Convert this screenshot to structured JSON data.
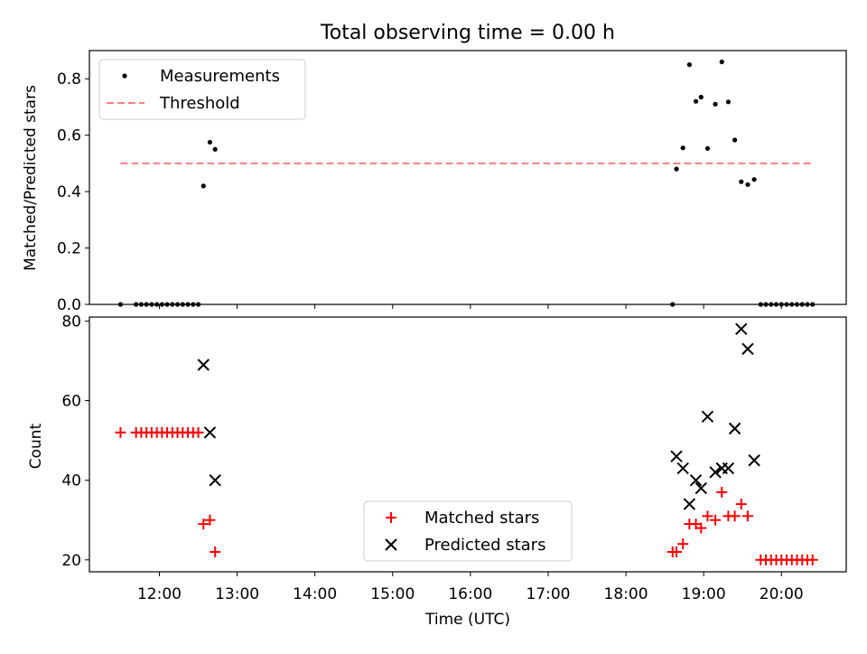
{
  "figure": {
    "title": "Total observing time = 0.00 h"
  },
  "chart_data": [
    {
      "type": "scatter",
      "ylabel": "Matched/Predicted stars",
      "xlabel": "",
      "xlim": [
        "11:06",
        "20:50"
      ],
      "ylim": [
        0,
        0.9
      ],
      "yticks": [
        "0.0",
        "0.2",
        "0.4",
        "0.6",
        "0.8"
      ],
      "legend_position": "top-left",
      "threshold": {
        "value": 0.5,
        "x_start": "11:30",
        "x_end": "20:24",
        "color": "#ff7f7f"
      },
      "series": [
        {
          "name": "Measurements",
          "color": "#000000",
          "points": [
            [
              "11:30",
              0.0
            ],
            [
              "11:42",
              0.0
            ],
            [
              "11:46",
              0.0
            ],
            [
              "11:50",
              0.0
            ],
            [
              "11:54",
              0.0
            ],
            [
              "11:58",
              0.0
            ],
            [
              "12:02",
              0.0
            ],
            [
              "12:06",
              0.0
            ],
            [
              "12:10",
              0.0
            ],
            [
              "12:14",
              0.0
            ],
            [
              "12:18",
              0.0
            ],
            [
              "12:22",
              0.0
            ],
            [
              "12:26",
              0.0
            ],
            [
              "12:30",
              0.0
            ],
            [
              "12:34",
              0.42
            ],
            [
              "12:39",
              0.575
            ],
            [
              "12:43",
              0.55
            ],
            [
              "18:36",
              0.0
            ],
            [
              "18:39",
              0.48
            ],
            [
              "18:44",
              0.555
            ],
            [
              "18:49",
              0.85
            ],
            [
              "18:54",
              0.72
            ],
            [
              "18:58",
              0.735
            ],
            [
              "19:03",
              0.553
            ],
            [
              "19:09",
              0.71
            ],
            [
              "19:14",
              0.86
            ],
            [
              "19:19",
              0.718
            ],
            [
              "19:24",
              0.583
            ],
            [
              "19:29",
              0.435
            ],
            [
              "19:34",
              0.425
            ],
            [
              "19:39",
              0.443
            ],
            [
              "19:44",
              0.0
            ],
            [
              "19:48",
              0.0
            ],
            [
              "19:52",
              0.0
            ],
            [
              "19:56",
              0.0
            ],
            [
              "20:00",
              0.0
            ],
            [
              "20:04",
              0.0
            ],
            [
              "20:08",
              0.0
            ],
            [
              "20:12",
              0.0
            ],
            [
              "20:16",
              0.0
            ],
            [
              "20:20",
              0.0
            ],
            [
              "20:24",
              0.0
            ]
          ]
        },
        {
          "name": "Threshold",
          "color": "#ff7f7f",
          "style": "dashed"
        }
      ]
    },
    {
      "type": "scatter",
      "ylabel": "Count",
      "xlabel": "Time (UTC)",
      "xlim": [
        "11:06",
        "20:50"
      ],
      "ylim": [
        17,
        81
      ],
      "yticks": [
        "20",
        "40",
        "60",
        "80"
      ],
      "xticks": [
        "12:00",
        "13:00",
        "14:00",
        "15:00",
        "16:00",
        "17:00",
        "18:00",
        "19:00",
        "20:00"
      ],
      "legend_position": "lower-center",
      "series": [
        {
          "name": "Matched stars",
          "color": "#ff0000",
          "marker": "plus",
          "points": [
            [
              "11:30",
              52
            ],
            [
              "11:42",
              52
            ],
            [
              "11:46",
              52
            ],
            [
              "11:50",
              52
            ],
            [
              "11:54",
              52
            ],
            [
              "11:58",
              52
            ],
            [
              "12:02",
              52
            ],
            [
              "12:06",
              52
            ],
            [
              "12:10",
              52
            ],
            [
              "12:14",
              52
            ],
            [
              "12:18",
              52
            ],
            [
              "12:22",
              52
            ],
            [
              "12:26",
              52
            ],
            [
              "12:30",
              52
            ],
            [
              "12:34",
              29
            ],
            [
              "12:39",
              30
            ],
            [
              "12:43",
              22
            ],
            [
              "18:36",
              22
            ],
            [
              "18:39",
              22
            ],
            [
              "18:44",
              24
            ],
            [
              "18:49",
              29
            ],
            [
              "18:54",
              29
            ],
            [
              "18:58",
              28
            ],
            [
              "19:03",
              31
            ],
            [
              "19:09",
              30
            ],
            [
              "19:14",
              37
            ],
            [
              "19:19",
              31
            ],
            [
              "19:24",
              31
            ],
            [
              "19:29",
              34
            ],
            [
              "19:34",
              31
            ],
            [
              "19:44",
              20
            ],
            [
              "19:48",
              20
            ],
            [
              "19:52",
              20
            ],
            [
              "19:56",
              20
            ],
            [
              "20:00",
              20
            ],
            [
              "20:04",
              20
            ],
            [
              "20:08",
              20
            ],
            [
              "20:12",
              20
            ],
            [
              "20:16",
              20
            ],
            [
              "20:20",
              20
            ],
            [
              "20:24",
              20
            ]
          ]
        },
        {
          "name": "Predicted stars",
          "color": "#000000",
          "marker": "x",
          "points": [
            [
              "12:34",
              69
            ],
            [
              "12:39",
              52
            ],
            [
              "12:43",
              40
            ],
            [
              "18:39",
              46
            ],
            [
              "18:44",
              43
            ],
            [
              "18:49",
              34
            ],
            [
              "18:54",
              40
            ],
            [
              "18:58",
              38
            ],
            [
              "19:03",
              56
            ],
            [
              "19:09",
              42
            ],
            [
              "19:14",
              43
            ],
            [
              "19:19",
              43
            ],
            [
              "19:24",
              53
            ],
            [
              "19:29",
              78
            ],
            [
              "19:34",
              73
            ],
            [
              "19:39",
              45
            ]
          ]
        }
      ]
    }
  ]
}
